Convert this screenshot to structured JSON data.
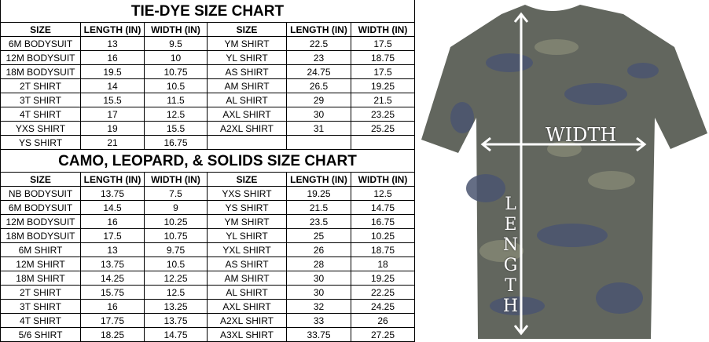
{
  "tables": [
    {
      "title": "TIE-DYE SIZE CHART",
      "headers": [
        "SIZE",
        "LENGTH (IN)",
        "WIDTH (IN)",
        "SIZE",
        "LENGTH (IN)",
        "WIDTH (IN)"
      ],
      "rows": [
        [
          "6M BODYSUIT",
          "13",
          "9.5",
          "YM SHIRT",
          "22.5",
          "17.5"
        ],
        [
          "12M BODYSUIT",
          "16",
          "10",
          "YL SHIRT",
          "23",
          "18.75"
        ],
        [
          "18M BODYSUIT",
          "19.5",
          "10.75",
          "AS SHIRT",
          "24.75",
          "17.5"
        ],
        [
          "2T SHIRT",
          "14",
          "10.5",
          "AM SHIRT",
          "26.5",
          "19.25"
        ],
        [
          "3T SHIRT",
          "15.5",
          "11.5",
          "AL SHIRT",
          "29",
          "21.5"
        ],
        [
          "4T SHIRT",
          "17",
          "12.5",
          "AXL SHIRT",
          "30",
          "23.25"
        ],
        [
          "YXS SHIRT",
          "19",
          "15.5",
          "A2XL SHIRT",
          "31",
          "25.25"
        ],
        [
          "YS SHIRT",
          "21",
          "16.75"
        ]
      ]
    },
    {
      "title": "CAMO, LEOPARD, & SOLIDS SIZE CHART",
      "headers": [
        "SIZE",
        "LENGTH (IN)",
        "WIDTH (IN)",
        "SIZE",
        "LENGTH (IN)",
        "WIDTH (IN)"
      ],
      "rows": [
        [
          "NB BODYSUIT",
          "13.75",
          "7.5",
          "YXS SHIRT",
          "19.25",
          "12.5"
        ],
        [
          "6M BODYSUIT",
          "14.5",
          "9",
          "YS SHIRT",
          "21.5",
          "14.75"
        ],
        [
          "12M BODYSUIT",
          "16",
          "10.25",
          "YM SHIRT",
          "23.5",
          "16.75"
        ],
        [
          "18M BODYSUIT",
          "17.5",
          "10.75",
          "YL SHIRT",
          "25",
          "10.25"
        ],
        [
          "6M SHIRT",
          "13",
          "9.75",
          "YXL SHIRT",
          "26",
          "18.75"
        ],
        [
          "12M SHIRT",
          "13.75",
          "10.5",
          "AS SHIRT",
          "28",
          "18"
        ],
        [
          "18M SHIRT",
          "14.25",
          "12.25",
          "AM SHIRT",
          "30",
          "19.25"
        ],
        [
          "2T SHIRT",
          "15.75",
          "12.5",
          "AL SHIRT",
          "30",
          "22.25"
        ],
        [
          "3T SHIRT",
          "16",
          "13.25",
          "AXL SHIRT",
          "32",
          "24.25"
        ],
        [
          "4T SHIRT",
          "17.75",
          "13.75",
          "A2XL SHIRT",
          "33",
          "26"
        ],
        [
          "5/6 SHIRT",
          "18.25",
          "14.75",
          "A3XL SHIRT",
          "33.75",
          "27.25"
        ]
      ]
    }
  ],
  "image": {
    "width_label": "WIDTH",
    "length_label": "LENGTH"
  }
}
